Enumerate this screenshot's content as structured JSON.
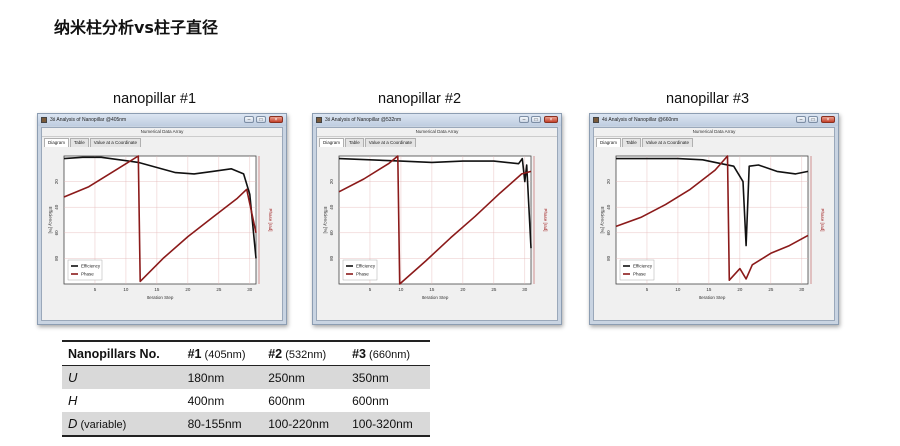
{
  "slide_title": "纳米柱分析vs柱子直径",
  "panels": [
    {
      "label": "nanopillar #1",
      "window_title": "3ś Analysis of Nanopillar @405nm",
      "header": "Numerical Data Array",
      "tabs": [
        "Diagram",
        "Table",
        "Value at a Coordinate"
      ],
      "legend": [
        "Efficiency",
        "Phase"
      ],
      "xlabel": "Iteration Step",
      "ylabel_left": "Efficiency [%]",
      "ylabel_right": "Phase [rad]",
      "xticks": [
        "5",
        "10",
        "15",
        "20",
        "25",
        "30"
      ],
      "yticks": [
        "80",
        "60",
        "40",
        "20"
      ]
    },
    {
      "label": "nanopillar #2",
      "window_title": "3ś Analysis of Nanopillar @532nm",
      "header": "Numerical Data Array",
      "tabs": [
        "Diagram",
        "Table",
        "Value at a Coordinate"
      ],
      "legend": [
        "Efficiency",
        "Phase"
      ],
      "xlabel": "Iteration Step",
      "ylabel_left": "Efficiency [%]",
      "ylabel_right": "Phase [rad]",
      "xticks": [
        "5",
        "10",
        "15",
        "20",
        "25",
        "30"
      ],
      "yticks": [
        "80",
        "60",
        "40",
        "20"
      ]
    },
    {
      "label": "nanopillar #3",
      "window_title": "4ś Analysis of Nanopillar @660nm",
      "header": "Numerical Data Array",
      "tabs": [
        "Diagram",
        "Table",
        "Value at a Coordinate"
      ],
      "legend": [
        "Efficiency",
        "Phase"
      ],
      "xlabel": "Iteration Step",
      "ylabel_left": "Efficiency [%]",
      "ylabel_right": "Phase [rad]",
      "xticks": [
        "5",
        "10",
        "15",
        "20",
        "25",
        "30"
      ],
      "yticks": [
        "80",
        "60",
        "40",
        "20"
      ]
    }
  ],
  "table": {
    "headers": [
      {
        "main": "Nanopillars No.",
        "sub": ""
      },
      {
        "main": "#1",
        "sub": " (405nm)"
      },
      {
        "main": "#2",
        "sub": " (532nm)"
      },
      {
        "main": "#3",
        "sub": " (660nm)"
      }
    ],
    "rows": [
      {
        "label": "U",
        "note": "",
        "values": [
          "180nm",
          "250nm",
          "350nm"
        ]
      },
      {
        "label": "H",
        "note": "",
        "values": [
          "400nm",
          "600nm",
          "600nm"
        ]
      },
      {
        "label": "D",
        "note": " (variable)",
        "values": [
          "80-155nm",
          "100-220nm",
          "100-320nm"
        ]
      }
    ]
  },
  "chart_data": [
    {
      "type": "line",
      "title": "nanopillar #1",
      "xlabel": "Iteration Step",
      "ylabel": "Efficiency [%]",
      "xlim": [
        0,
        31
      ],
      "ylim": [
        0,
        100
      ],
      "x_ticks": [
        5,
        10,
        15,
        20,
        25,
        30
      ],
      "y_ticks": [
        20,
        40,
        60,
        80
      ],
      "grid": true,
      "legend_position": "bottom-left",
      "series": [
        {
          "name": "Efficiency",
          "color": "#111111",
          "x": [
            0,
            3,
            6,
            9,
            12,
            15,
            18,
            21,
            24,
            27,
            29,
            30,
            31
          ],
          "y": [
            98,
            99,
            99,
            97,
            95,
            91,
            87,
            86,
            88,
            90,
            86,
            70,
            20
          ]
        },
        {
          "name": "Phase",
          "color": "#8b1a1a",
          "x": [
            0,
            4,
            8,
            12,
            12.3,
            16,
            20,
            24,
            28,
            29.5,
            31
          ],
          "y": [
            68,
            76,
            88,
            100,
            2,
            20,
            37,
            52,
            67,
            74,
            40
          ]
        }
      ]
    },
    {
      "type": "line",
      "title": "nanopillar #2",
      "xlabel": "Iteration Step",
      "ylabel": "Efficiency [%]",
      "xlim": [
        0,
        31
      ],
      "ylim": [
        0,
        100
      ],
      "x_ticks": [
        5,
        10,
        15,
        20,
        25,
        30
      ],
      "y_ticks": [
        20,
        40,
        60,
        80
      ],
      "grid": true,
      "legend_position": "bottom-left",
      "series": [
        {
          "name": "Efficiency",
          "color": "#111111",
          "x": [
            0,
            5,
            10,
            15,
            20,
            25,
            29,
            29.6,
            30,
            30.3,
            31
          ],
          "y": [
            98,
            97,
            96,
            95,
            96,
            96,
            94,
            98,
            80,
            93,
            28
          ]
        },
        {
          "name": "Phase",
          "color": "#8b1a1a",
          "x": [
            0,
            4,
            8,
            9.5,
            9.8,
            14,
            18,
            22,
            26,
            29.5,
            31
          ],
          "y": [
            72,
            82,
            94,
            100,
            0,
            18,
            36,
            53,
            71,
            86,
            88
          ]
        }
      ]
    },
    {
      "type": "line",
      "title": "nanopillar #3",
      "xlabel": "Iteration Step",
      "ylabel": "Efficiency [%]",
      "xlim": [
        0,
        31
      ],
      "ylim": [
        0,
        100
      ],
      "x_ticks": [
        5,
        10,
        15,
        20,
        25,
        30
      ],
      "y_ticks": [
        20,
        40,
        60,
        80
      ],
      "grid": true,
      "legend_position": "bottom-left",
      "series": [
        {
          "name": "Efficiency",
          "color": "#111111",
          "x": [
            0,
            5,
            10,
            14,
            17,
            19,
            20.5,
            21,
            21.5,
            23,
            26,
            29,
            31
          ],
          "y": [
            98,
            98,
            98,
            97,
            94,
            92,
            80,
            30,
            92,
            93,
            88,
            86,
            88
          ]
        },
        {
          "name": "Phase",
          "color": "#8b1a1a",
          "x": [
            0,
            4,
            8,
            12,
            16,
            18,
            18.3,
            20,
            21,
            22,
            25,
            28,
            31
          ],
          "y": [
            45,
            52,
            62,
            74,
            89,
            100,
            3,
            12,
            4,
            15,
            24,
            30,
            38
          ]
        }
      ]
    }
  ]
}
